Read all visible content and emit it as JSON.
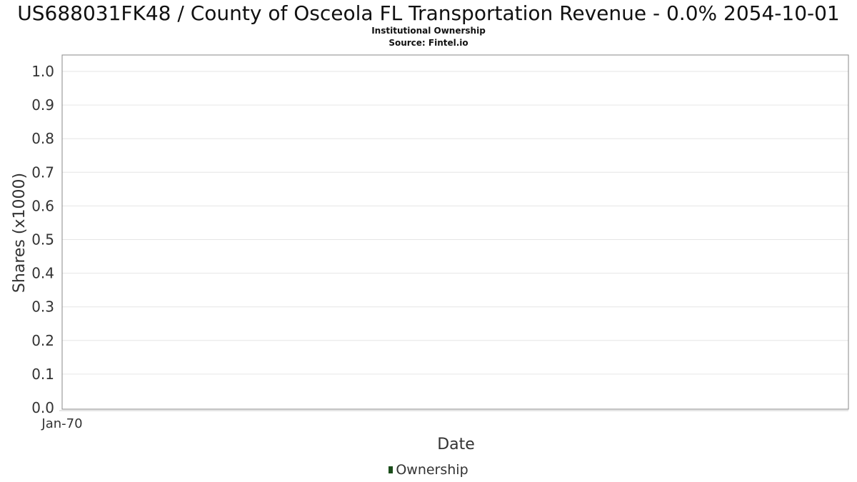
{
  "colors": {
    "series": "#1b4d1b",
    "grid": "#e6e6e6",
    "frame": "#888888",
    "text": "#333333"
  },
  "chart_data": {
    "type": "area",
    "title": "US688031FK48 / County of Osceola FL Transportation Revenue - 0.0% 2054-10-01",
    "subtitle": "Institutional Ownership",
    "source": "Source: Fintel.io",
    "xlabel": "Date",
    "ylabel": "Shares (x1000)",
    "ylim": [
      0,
      1.0
    ],
    "y_ticks": [
      "0.0",
      "0.1",
      "0.2",
      "0.3",
      "0.4",
      "0.5",
      "0.6",
      "0.7",
      "0.8",
      "0.9",
      "1.0"
    ],
    "x_ticks": [
      "Jan-70"
    ],
    "grid": true,
    "legend_position": "bottom-center",
    "series": [
      {
        "name": "Ownership",
        "values": []
      }
    ]
  }
}
